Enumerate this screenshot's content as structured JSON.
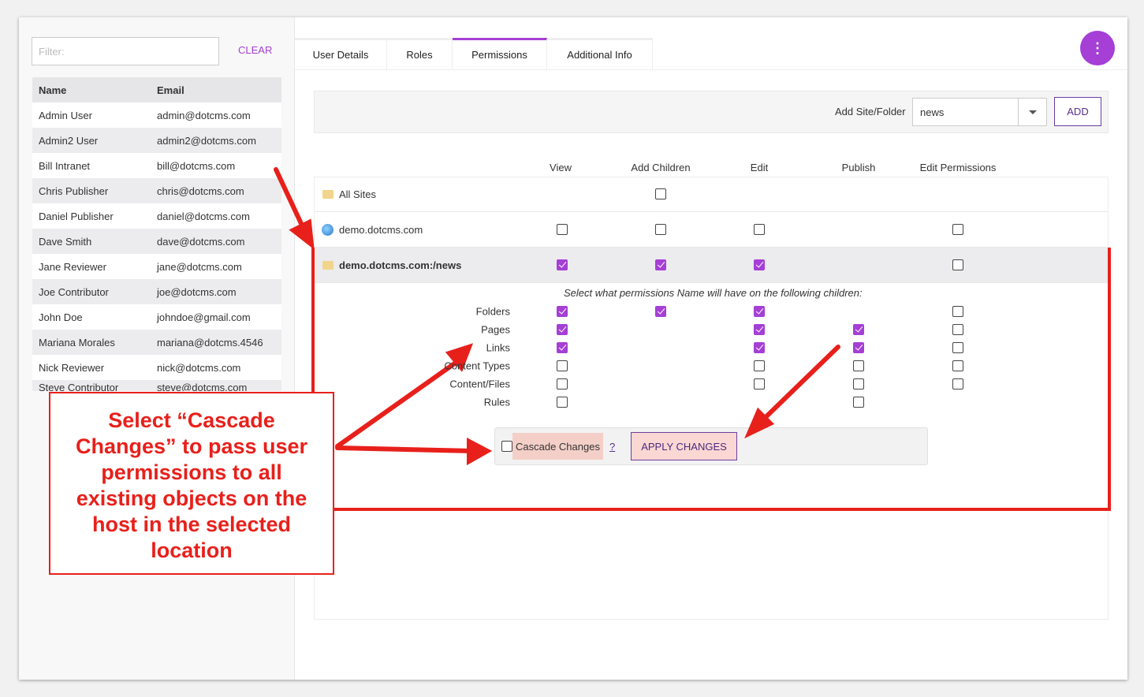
{
  "sidebar": {
    "filter_placeholder": "Filter:",
    "clear_label": "CLEAR",
    "headers": [
      "Name",
      "Email"
    ],
    "users": [
      [
        "Admin User",
        "admin@dotcms.com"
      ],
      [
        "Admin2 User",
        "admin2@dotcms.com"
      ],
      [
        "Bill Intranet",
        "bill@dotcms.com"
      ],
      [
        "Chris Publisher",
        "chris@dotcms.com"
      ],
      [
        "Daniel Publisher",
        "daniel@dotcms.com"
      ],
      [
        "Dave Smith",
        "dave@dotcms.com"
      ],
      [
        "Jane Reviewer",
        "jane@dotcms.com"
      ],
      [
        "Joe Contributor",
        "joe@dotcms.com"
      ],
      [
        "John Doe",
        "johndoe@gmail.com"
      ],
      [
        "Mariana Morales",
        "mariana@dotcms.4546"
      ],
      [
        "Nick Reviewer",
        "nick@dotcms.com"
      ],
      [
        "Steve Contributor",
        "steve@dotcms.com"
      ]
    ]
  },
  "tabs": [
    "User Details",
    "Roles",
    "Permissions",
    "Additional Info"
  ],
  "active_tab": "Permissions",
  "menu_icon": "vertical-dots-icon",
  "add_site": {
    "label": "Add Site/Folder",
    "value": "news",
    "button": "ADD"
  },
  "columns": [
    "View",
    "Add Children",
    "Edit",
    "Publish",
    "Edit Permissions"
  ],
  "rows": [
    {
      "name": "All Sites",
      "icon": "folder-icon",
      "values": [
        null,
        false,
        null,
        null,
        null
      ]
    },
    {
      "name": "demo.dotcms.com",
      "icon": "globe-icon",
      "values": [
        false,
        false,
        false,
        null,
        false
      ]
    },
    {
      "name": "demo.dotcms.com:/news",
      "icon": "folder-icon",
      "values": [
        true,
        true,
        true,
        null,
        false
      ]
    }
  ],
  "children_hint": "Select what permissions Name will have on the following children:",
  "children": [
    {
      "name": "Folders",
      "values": [
        true,
        true,
        true,
        null,
        false
      ]
    },
    {
      "name": "Pages",
      "values": [
        true,
        null,
        true,
        true,
        false
      ]
    },
    {
      "name": "Links",
      "values": [
        true,
        null,
        true,
        true,
        false
      ]
    },
    {
      "name": "Content Types",
      "values": [
        false,
        null,
        false,
        false,
        false
      ]
    },
    {
      "name": "Content/Files",
      "values": [
        false,
        null,
        false,
        false,
        false
      ]
    },
    {
      "name": "Rules",
      "values": [
        false,
        null,
        null,
        false,
        null
      ]
    }
  ],
  "cascade": {
    "label": "Cascade Changes",
    "checked": false,
    "help": "?",
    "apply": "APPLY CHANGES"
  },
  "annotation": {
    "text": "Select “Cascade Changes” to pass user permissions to all existing objects on the host in the selected location",
    "color": "#e8201b"
  },
  "colors": {
    "accent": "#a53fd5"
  }
}
